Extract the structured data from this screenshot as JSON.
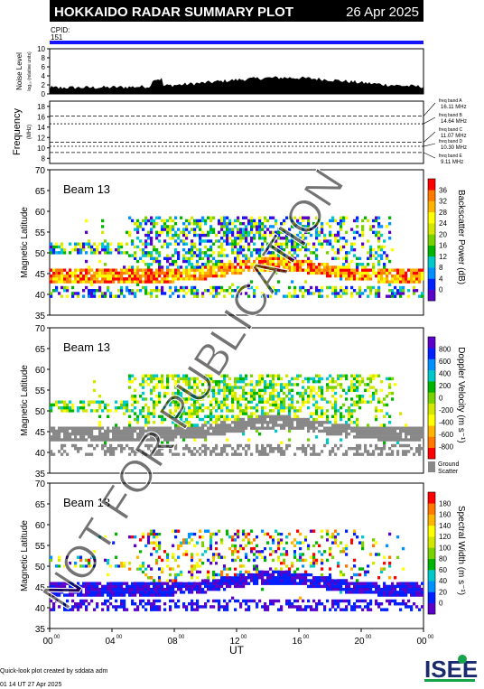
{
  "header": {
    "title": "HOKKAIDO RADAR SUMMARY PLOT",
    "date": "26 Apr 2025",
    "cpid_label": "CPID:",
    "cpid_value": "151"
  },
  "noise_panel": {
    "ylabel": "Noise Level",
    "ylabel_sub": "log₁₀ (relative units)",
    "ticks": [
      "0",
      "2",
      "4",
      "6",
      "8",
      "10"
    ]
  },
  "freq_panel": {
    "ylabel": "Frequency",
    "ylabel_unit": "(MHz)",
    "ticks": [
      "8",
      "10",
      "12",
      "14",
      "16",
      "18"
    ],
    "bands": [
      {
        "name": "freq band A",
        "freq": "16.11 MHz",
        "mhz": 16.11
      },
      {
        "name": "freq band B",
        "freq": "14.64 MHz",
        "mhz": 14.64
      },
      {
        "name": "freq band C",
        "freq": "11.07 MHz",
        "mhz": 11.07
      },
      {
        "name": "freq band D",
        "freq": "10.30 MHz",
        "mhz": 10.3
      },
      {
        "name": "freq band E",
        "freq": "9.11 MHz",
        "mhz": 9.11
      }
    ]
  },
  "panels": [
    {
      "beam": "Beam 13",
      "ylabel": "Magnetic Latitude",
      "cb_label": "Backscatter Power (dB)",
      "cb_ticks": [
        "0",
        "4",
        "8",
        "12",
        "16",
        "20",
        "24",
        "28",
        "32",
        "36"
      ],
      "cb_colors": [
        "#5a00c8",
        "#0020ff",
        "#0090ff",
        "#00c8c8",
        "#00b400",
        "#78d200",
        "#d2e600",
        "#ffff00",
        "#ffb400",
        "#ff7800",
        "#ff0000"
      ]
    },
    {
      "beam": "Beam 13",
      "ylabel": "Magnetic Latitude",
      "cb_label": "Doppler Velocity (m s⁻¹)",
      "cb_ticks": [
        "-800",
        "-600",
        "-400",
        "-200",
        "0",
        "200",
        "400",
        "600",
        "800"
      ],
      "cb_colors": [
        "#ff0000",
        "#ff7800",
        "#ffb400",
        "#ffff00",
        "#d2e600",
        "#78d200",
        "#00b400",
        "#00c8c8",
        "#0090ff",
        "#0020ff",
        "#5a00c8"
      ],
      "ground_label": "Ground",
      "ground_label2": "Scatter"
    },
    {
      "beam": "Beam 13",
      "ylabel": "Magnetic Latitude",
      "cb_label": "Spectral Width (m s⁻¹)",
      "cb_ticks": [
        "0",
        "20",
        "40",
        "60",
        "80",
        "100",
        "120",
        "140",
        "160",
        "180"
      ],
      "cb_colors": [
        "#5a00c8",
        "#0020ff",
        "#0090ff",
        "#00c8c8",
        "#00b400",
        "#78d200",
        "#d2e600",
        "#ffff00",
        "#ffb400",
        "#ff7800",
        "#ff0000"
      ]
    }
  ],
  "lat_ticks": [
    "35",
    "40",
    "45",
    "50",
    "55",
    "60",
    "65",
    "70"
  ],
  "x_axis": {
    "label": "UT",
    "ticks": [
      {
        "h": "00",
        "m": "00"
      },
      {
        "h": "04",
        "m": "00"
      },
      {
        "h": "08",
        "m": "00"
      },
      {
        "h": "12",
        "m": "00"
      },
      {
        "h": "16",
        "m": "00"
      },
      {
        "h": "20",
        "m": "00"
      },
      {
        "h": "00",
        "m": "00"
      }
    ]
  },
  "watermark": "NOT FOR PUBLICATION",
  "footer": {
    "line1": "Quick-look plot created by sddata adm",
    "line2": "01 14 UT 27 Apr 2025",
    "logo": "ISEE"
  },
  "chart_data": [
    {
      "type": "area",
      "name": "noise",
      "ylim": [
        0,
        10
      ],
      "xlim": [
        0,
        24
      ],
      "note": "noise level vs UT"
    },
    {
      "type": "line",
      "name": "frequency",
      "ylim": [
        7,
        19
      ],
      "xlim": [
        0,
        24
      ],
      "bands_mhz": [
        16.11,
        14.64,
        11.07,
        10.3,
        9.11
      ]
    },
    {
      "type": "heatmap",
      "name": "power",
      "ylim": [
        35,
        70
      ],
      "xlim": [
        0,
        24
      ],
      "clim": [
        0,
        40
      ]
    },
    {
      "type": "heatmap",
      "name": "velocity",
      "ylim": [
        35,
        70
      ],
      "xlim": [
        0,
        24
      ],
      "clim": [
        -1000,
        1000
      ]
    },
    {
      "type": "heatmap",
      "name": "width",
      "ylim": [
        35,
        70
      ],
      "xlim": [
        0,
        24
      ],
      "clim": [
        0,
        200
      ]
    }
  ]
}
